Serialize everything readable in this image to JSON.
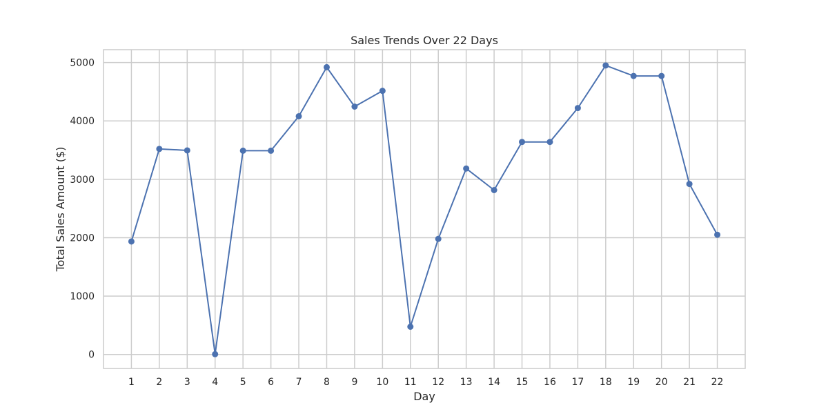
{
  "chart_data": {
    "type": "line",
    "title": "Sales Trends Over 22 Days",
    "xlabel": "Day",
    "ylabel": "Total Sales Amount ($)",
    "x": [
      1,
      2,
      3,
      4,
      5,
      6,
      7,
      8,
      9,
      10,
      11,
      12,
      13,
      14,
      15,
      16,
      17,
      18,
      19,
      20,
      21,
      22
    ],
    "series": [
      {
        "values": [
          1935,
          3520,
          3495,
          5,
          3490,
          3490,
          4080,
          4920,
          4245,
          4515,
          475,
          1980,
          3185,
          2815,
          3640,
          3640,
          4220,
          4950,
          4770,
          4770,
          2920,
          2050
        ],
        "color": "#4c72b0"
      }
    ],
    "xlim": [
      0,
      23
    ],
    "ylim": [
      -240,
      5220
    ],
    "yticks": [
      0,
      1000,
      2000,
      3000,
      4000,
      5000
    ],
    "xticks": [
      1,
      2,
      3,
      4,
      5,
      6,
      7,
      8,
      9,
      10,
      11,
      12,
      13,
      14,
      15,
      16,
      17,
      18,
      19,
      20,
      21,
      22
    ],
    "grid": true,
    "marker": "circle",
    "style": {
      "grid_color": "#cccccc",
      "frame_color": "#cccccc",
      "text_color": "#262626",
      "background": "#ffffff"
    }
  }
}
